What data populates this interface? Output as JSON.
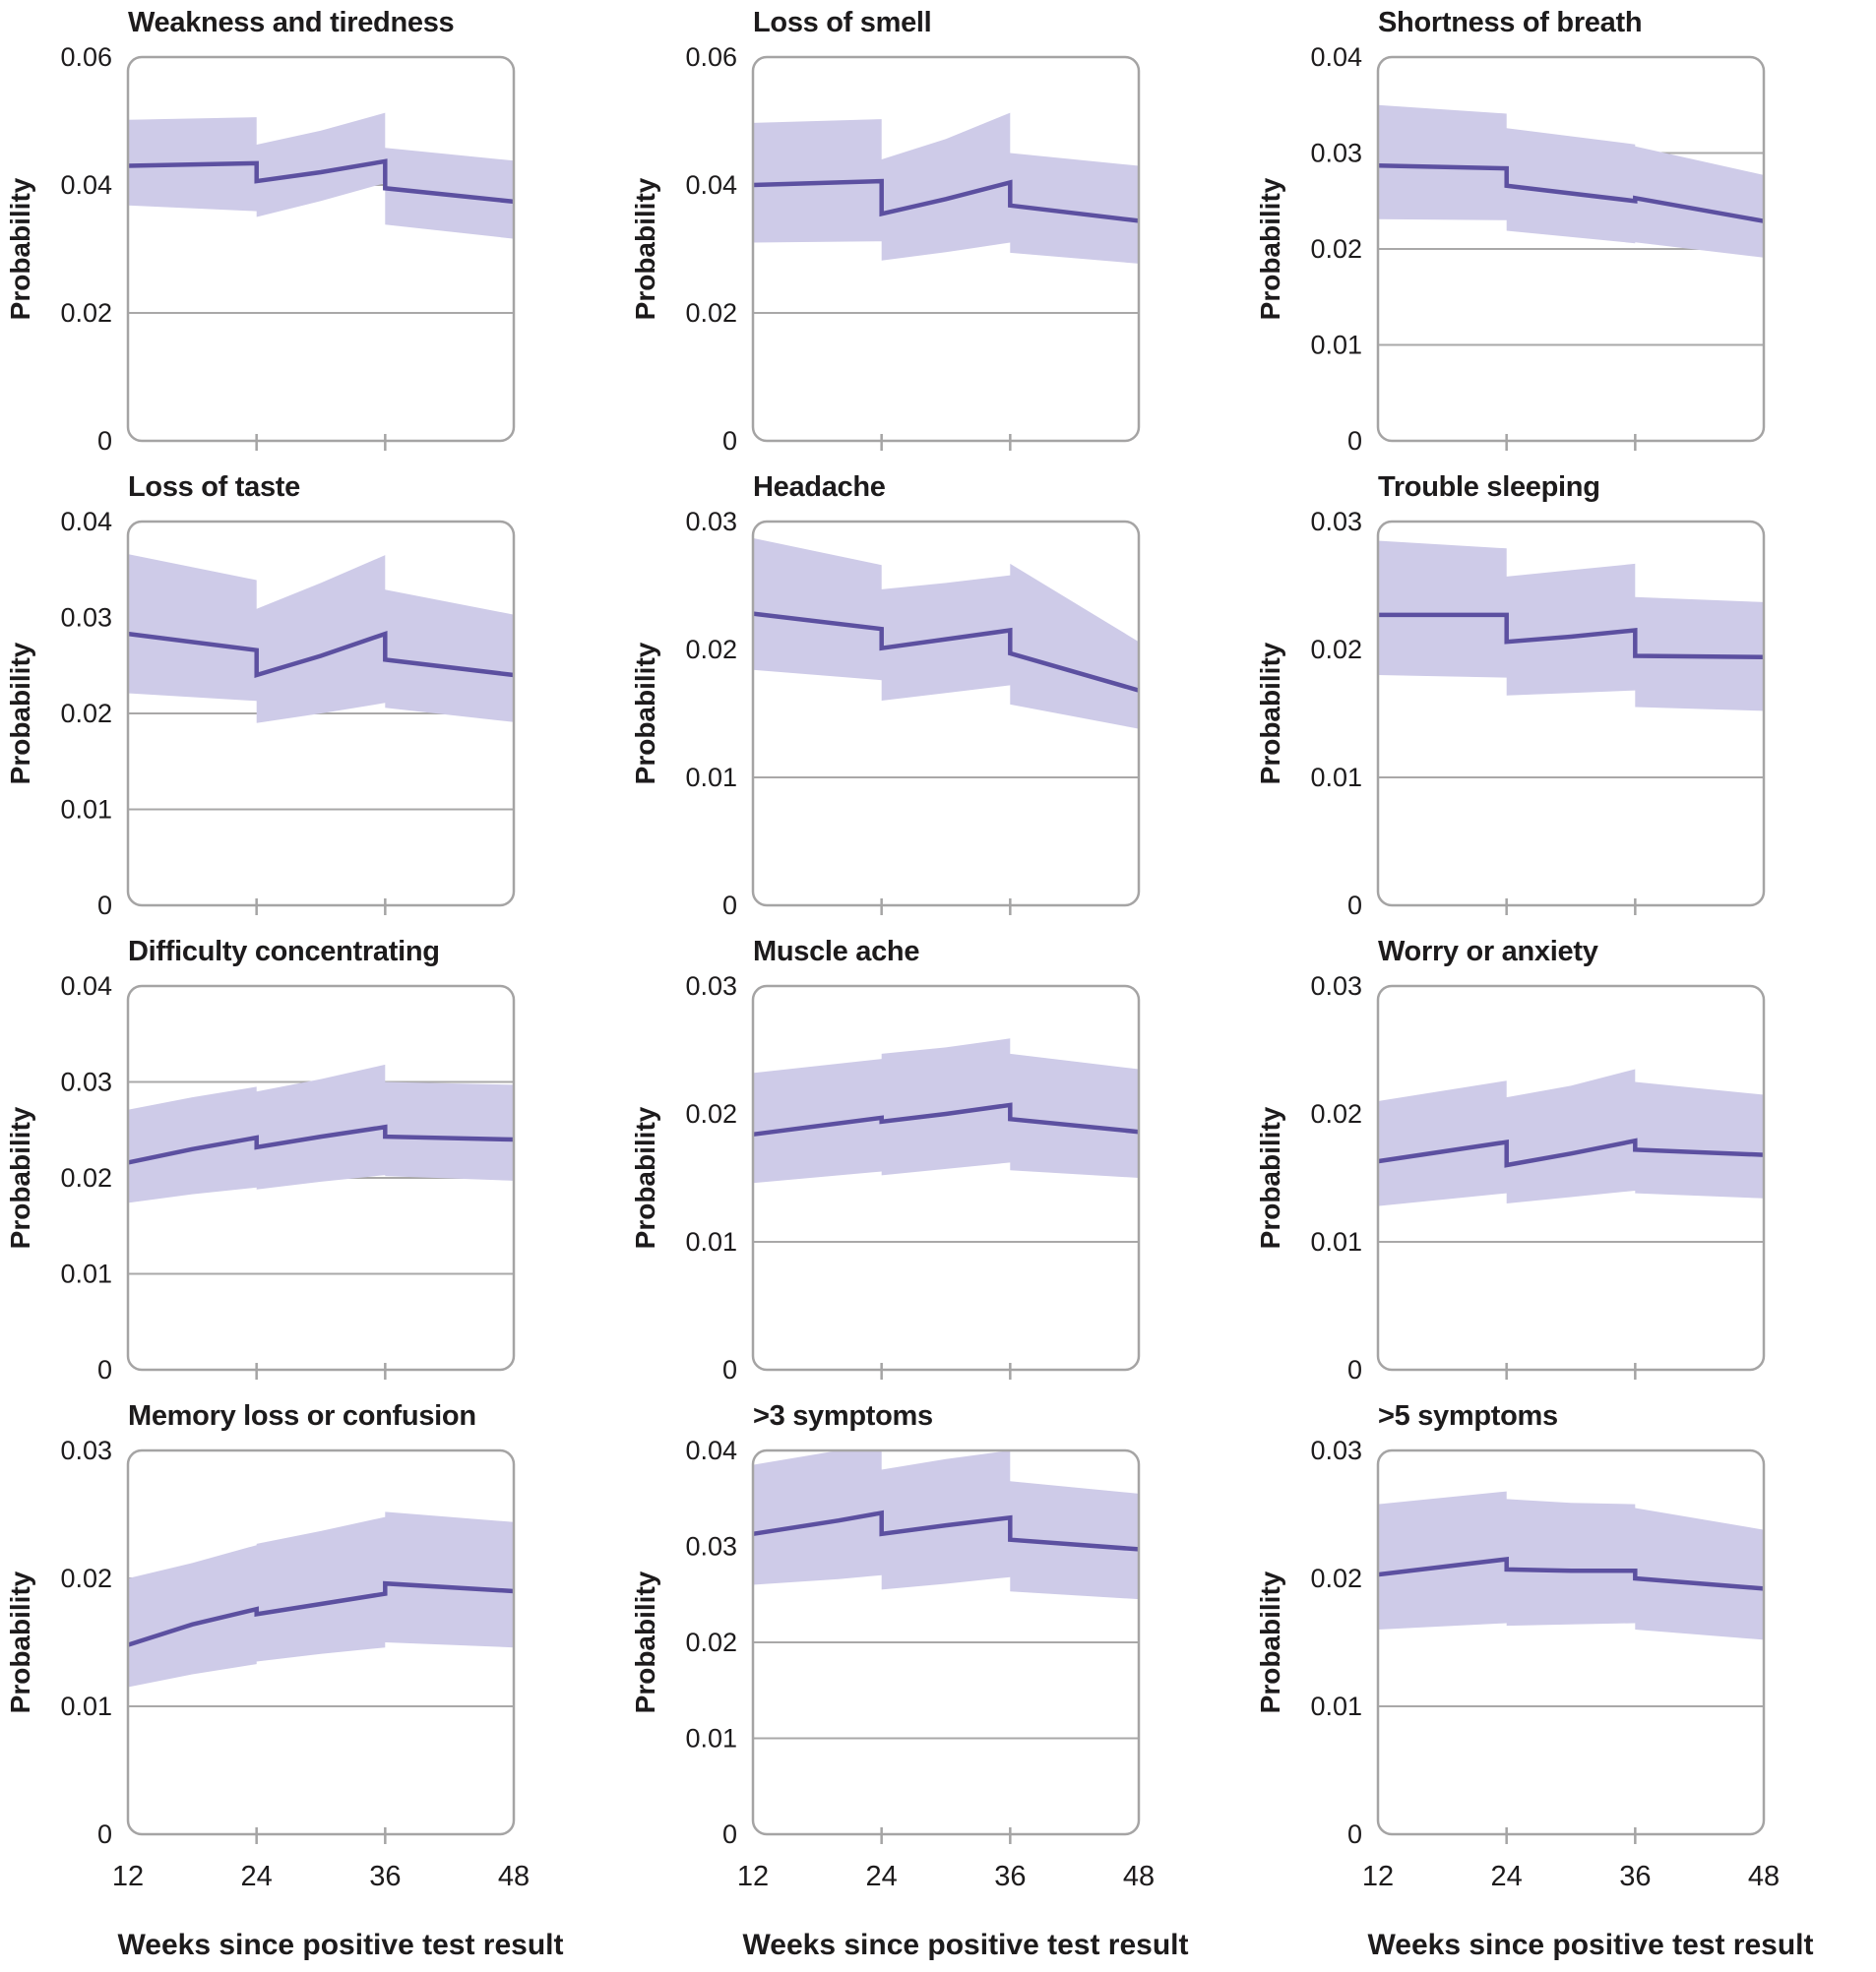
{
  "figure": {
    "xlabel": "Weeks since positive test result",
    "ylabel": "Probability",
    "x_ticks": [
      12,
      24,
      36,
      48
    ],
    "x_range": [
      12,
      48
    ],
    "breakpoints_weeks": [
      24,
      36
    ],
    "colors": {
      "line": "#5c50a0",
      "band": "#cecbe8",
      "grid": "#a9a8a8",
      "border": "#a5a4a4",
      "tick": "#a5a4a4",
      "text": "#1d1b1c",
      "background": "#ffffff"
    }
  },
  "chart_data": {
    "type": "line",
    "layout": {
      "grid_rows": 4,
      "grid_cols": 3,
      "bands": "shaded confidence interval around each line",
      "discontinuities": "vertical steps at weeks 24 and 36",
      "legend": "none",
      "gridlines": "horizontal only, at interior y ticks"
    },
    "panels": [
      {
        "title": "Weakness and tiredness",
        "ylim": [
          0,
          0.06
        ],
        "yticks": [
          0,
          0.02,
          0.04,
          0.06
        ],
        "segments": [
          {
            "x": [
              12,
              24
            ],
            "line": [
              0.043,
              0.0434
            ],
            "lo": [
              0.0368,
              0.0359
            ],
            "hi": [
              0.0502,
              0.0506
            ]
          },
          {
            "x": [
              24,
              30,
              36
            ],
            "line": [
              0.0406,
              0.042,
              0.0437
            ],
            "lo": [
              0.035,
              0.0375,
              0.0403
            ],
            "hi": [
              0.0463,
              0.0485,
              0.0513
            ]
          },
          {
            "x": [
              36,
              48
            ],
            "line": [
              0.0395,
              0.0374
            ],
            "lo": [
              0.0338,
              0.0316
            ],
            "hi": [
              0.0458,
              0.0438
            ]
          }
        ]
      },
      {
        "title": "Loss of smell",
        "ylim": [
          0,
          0.06
        ],
        "yticks": [
          0,
          0.02,
          0.04,
          0.06
        ],
        "segments": [
          {
            "x": [
              12,
              24
            ],
            "line": [
              0.04,
              0.0406
            ],
            "lo": [
              0.031,
              0.0312
            ],
            "hi": [
              0.0497,
              0.0503
            ]
          },
          {
            "x": [
              24,
              30,
              36
            ],
            "line": [
              0.0355,
              0.0378,
              0.0404
            ],
            "lo": [
              0.0282,
              0.0295,
              0.031
            ],
            "hi": [
              0.044,
              0.0472,
              0.0513
            ]
          },
          {
            "x": [
              36,
              48
            ],
            "line": [
              0.0368,
              0.0344
            ],
            "lo": [
              0.0294,
              0.0277
            ],
            "hi": [
              0.045,
              0.043
            ]
          }
        ]
      },
      {
        "title": "Shortness of breath",
        "ylim": [
          0,
          0.04
        ],
        "yticks": [
          0,
          0.01,
          0.02,
          0.03,
          0.04
        ],
        "segments": [
          {
            "x": [
              12,
              24
            ],
            "line": [
              0.0287,
              0.0284
            ],
            "lo": [
              0.0231,
              0.023
            ],
            "hi": [
              0.035,
              0.0341
            ]
          },
          {
            "x": [
              24,
              36
            ],
            "line": [
              0.0266,
              0.025
            ],
            "lo": [
              0.0219,
              0.0206
            ],
            "hi": [
              0.0326,
              0.0309
            ]
          },
          {
            "x": [
              36,
              48
            ],
            "line": [
              0.0253,
              0.0229
            ],
            "lo": [
              0.0207,
              0.0191
            ],
            "hi": [
              0.0307,
              0.0277
            ]
          }
        ]
      },
      {
        "title": "Loss of taste",
        "ylim": [
          0,
          0.04
        ],
        "yticks": [
          0,
          0.01,
          0.02,
          0.03,
          0.04
        ],
        "segments": [
          {
            "x": [
              12,
              24
            ],
            "line": [
              0.0283,
              0.0266
            ],
            "lo": [
              0.0221,
              0.0213
            ],
            "hi": [
              0.0366,
              0.0339
            ]
          },
          {
            "x": [
              24,
              30,
              36
            ],
            "line": [
              0.024,
              0.026,
              0.0283
            ],
            "lo": [
              0.019,
              0.02,
              0.0211
            ],
            "hi": [
              0.0309,
              0.0336,
              0.0365
            ]
          },
          {
            "x": [
              36,
              48
            ],
            "line": [
              0.0256,
              0.024
            ],
            "lo": [
              0.0206,
              0.0191
            ],
            "hi": [
              0.0329,
              0.0303
            ]
          }
        ]
      },
      {
        "title": "Headache",
        "ylim": [
          0,
          0.03
        ],
        "yticks": [
          0,
          0.01,
          0.02,
          0.03
        ],
        "segments": [
          {
            "x": [
              12,
              24
            ],
            "line": [
              0.0228,
              0.0216
            ],
            "lo": [
              0.0184,
              0.0176
            ],
            "hi": [
              0.0287,
              0.0266
            ]
          },
          {
            "x": [
              24,
              30,
              36
            ],
            "line": [
              0.0201,
              0.0208,
              0.0215
            ],
            "lo": [
              0.016,
              0.0166,
              0.0172
            ],
            "hi": [
              0.0247,
              0.0252,
              0.0258
            ]
          },
          {
            "x": [
              36,
              48
            ],
            "line": [
              0.0197,
              0.0168
            ],
            "lo": [
              0.0157,
              0.0138
            ],
            "hi": [
              0.0267,
              0.0206
            ]
          }
        ]
      },
      {
        "title": "Trouble sleeping",
        "ylim": [
          0,
          0.03
        ],
        "yticks": [
          0,
          0.01,
          0.02,
          0.03
        ],
        "segments": [
          {
            "x": [
              12,
              24
            ],
            "line": [
              0.0227,
              0.0227
            ],
            "lo": [
              0.018,
              0.0178
            ],
            "hi": [
              0.0285,
              0.0279
            ]
          },
          {
            "x": [
              24,
              30,
              36
            ],
            "line": [
              0.0206,
              0.021,
              0.0215
            ],
            "lo": [
              0.0164,
              0.0166,
              0.0168
            ],
            "hi": [
              0.0257,
              0.0262,
              0.0267
            ]
          },
          {
            "x": [
              36,
              48
            ],
            "line": [
              0.0195,
              0.0194
            ],
            "lo": [
              0.0155,
              0.0152
            ],
            "hi": [
              0.0241,
              0.0237
            ]
          }
        ]
      },
      {
        "title": "Difficulty concentrating",
        "ylim": [
          0,
          0.04
        ],
        "yticks": [
          0,
          0.01,
          0.02,
          0.03,
          0.04
        ],
        "segments": [
          {
            "x": [
              12,
              18,
              24
            ],
            "line": [
              0.0216,
              0.023,
              0.0242
            ],
            "lo": [
              0.0174,
              0.0183,
              0.019
            ],
            "hi": [
              0.0271,
              0.0284,
              0.0295
            ]
          },
          {
            "x": [
              24,
              30,
              36
            ],
            "line": [
              0.0232,
              0.0243,
              0.0253
            ],
            "lo": [
              0.0188,
              0.0196,
              0.0203
            ],
            "hi": [
              0.029,
              0.0303,
              0.0318
            ]
          },
          {
            "x": [
              36,
              48
            ],
            "line": [
              0.0243,
              0.024
            ],
            "lo": [
              0.0202,
              0.0197
            ],
            "hi": [
              0.03,
              0.0297
            ]
          }
        ]
      },
      {
        "title": "Muscle ache",
        "ylim": [
          0,
          0.03
        ],
        "yticks": [
          0,
          0.01,
          0.02,
          0.03
        ],
        "segments": [
          {
            "x": [
              12,
              24
            ],
            "line": [
              0.0184,
              0.0197
            ],
            "lo": [
              0.0146,
              0.0155
            ],
            "hi": [
              0.0232,
              0.0243
            ]
          },
          {
            "x": [
              24,
              30,
              36
            ],
            "line": [
              0.0194,
              0.02,
              0.0207
            ],
            "lo": [
              0.0152,
              0.0157,
              0.0162
            ],
            "hi": [
              0.0247,
              0.0252,
              0.0259
            ]
          },
          {
            "x": [
              36,
              48
            ],
            "line": [
              0.0196,
              0.0186
            ],
            "lo": [
              0.0156,
              0.015
            ],
            "hi": [
              0.0247,
              0.0235
            ]
          }
        ]
      },
      {
        "title": "Worry or anxiety",
        "ylim": [
          0,
          0.03
        ],
        "yticks": [
          0,
          0.01,
          0.02,
          0.03
        ],
        "segments": [
          {
            "x": [
              12,
              24
            ],
            "line": [
              0.0163,
              0.0178
            ],
            "lo": [
              0.0128,
              0.0138
            ],
            "hi": [
              0.021,
              0.0226
            ]
          },
          {
            "x": [
              24,
              30,
              36
            ],
            "line": [
              0.016,
              0.0169,
              0.0179
            ],
            "lo": [
              0.013,
              0.0135,
              0.014
            ],
            "hi": [
              0.0213,
              0.0222,
              0.0235
            ]
          },
          {
            "x": [
              36,
              48
            ],
            "line": [
              0.0172,
              0.0168
            ],
            "lo": [
              0.0138,
              0.0134
            ],
            "hi": [
              0.0225,
              0.0215
            ]
          }
        ]
      },
      {
        "title": "Memory loss or confusion",
        "ylim": [
          0,
          0.03
        ],
        "yticks": [
          0,
          0.01,
          0.02,
          0.03
        ],
        "segments": [
          {
            "x": [
              12,
              18,
              24
            ],
            "line": [
              0.0148,
              0.0164,
              0.0176
            ],
            "lo": [
              0.0115,
              0.0125,
              0.0133
            ],
            "hi": [
              0.02,
              0.0212,
              0.0226
            ]
          },
          {
            "x": [
              24,
              30,
              36
            ],
            "line": [
              0.0172,
              0.018,
              0.0188
            ],
            "lo": [
              0.0135,
              0.0141,
              0.0146
            ],
            "hi": [
              0.0227,
              0.0237,
              0.0248
            ]
          },
          {
            "x": [
              36,
              48
            ],
            "line": [
              0.0196,
              0.019
            ],
            "lo": [
              0.015,
              0.0146
            ],
            "hi": [
              0.0252,
              0.0244
            ]
          }
        ]
      },
      {
        "title": ">3 symptoms",
        "ylim": [
          0,
          0.04
        ],
        "yticks": [
          0,
          0.01,
          0.02,
          0.03,
          0.04
        ],
        "segments": [
          {
            "x": [
              12,
              20,
              24
            ],
            "line": [
              0.0313,
              0.0327,
              0.0335
            ],
            "lo": [
              0.026,
              0.0266,
              0.027
            ],
            "hi": [
              0.0385,
              0.04,
              0.04
            ]
          },
          {
            "x": [
              24,
              30,
              36
            ],
            "line": [
              0.0313,
              0.0322,
              0.033
            ],
            "lo": [
              0.0255,
              0.0261,
              0.0268
            ],
            "hi": [
              0.038,
              0.0391,
              0.04
            ]
          },
          {
            "x": [
              36,
              48
            ],
            "line": [
              0.0307,
              0.0297
            ],
            "lo": [
              0.0253,
              0.0245
            ],
            "hi": [
              0.0368,
              0.0355
            ]
          }
        ]
      },
      {
        "title": ">5 symptoms",
        "ylim": [
          0,
          0.03
        ],
        "yticks": [
          0,
          0.01,
          0.02,
          0.03
        ],
        "segments": [
          {
            "x": [
              12,
              24
            ],
            "line": [
              0.0203,
              0.0215
            ],
            "lo": [
              0.016,
              0.0165
            ],
            "hi": [
              0.0258,
              0.0268
            ]
          },
          {
            "x": [
              24,
              30,
              36
            ],
            "line": [
              0.0207,
              0.0206,
              0.0206
            ],
            "lo": [
              0.0163,
              0.0164,
              0.0165
            ],
            "hi": [
              0.0262,
              0.0259,
              0.0258
            ]
          },
          {
            "x": [
              36,
              48
            ],
            "line": [
              0.02,
              0.0192
            ],
            "lo": [
              0.016,
              0.0152
            ],
            "hi": [
              0.0255,
              0.0238
            ]
          }
        ]
      }
    ]
  }
}
